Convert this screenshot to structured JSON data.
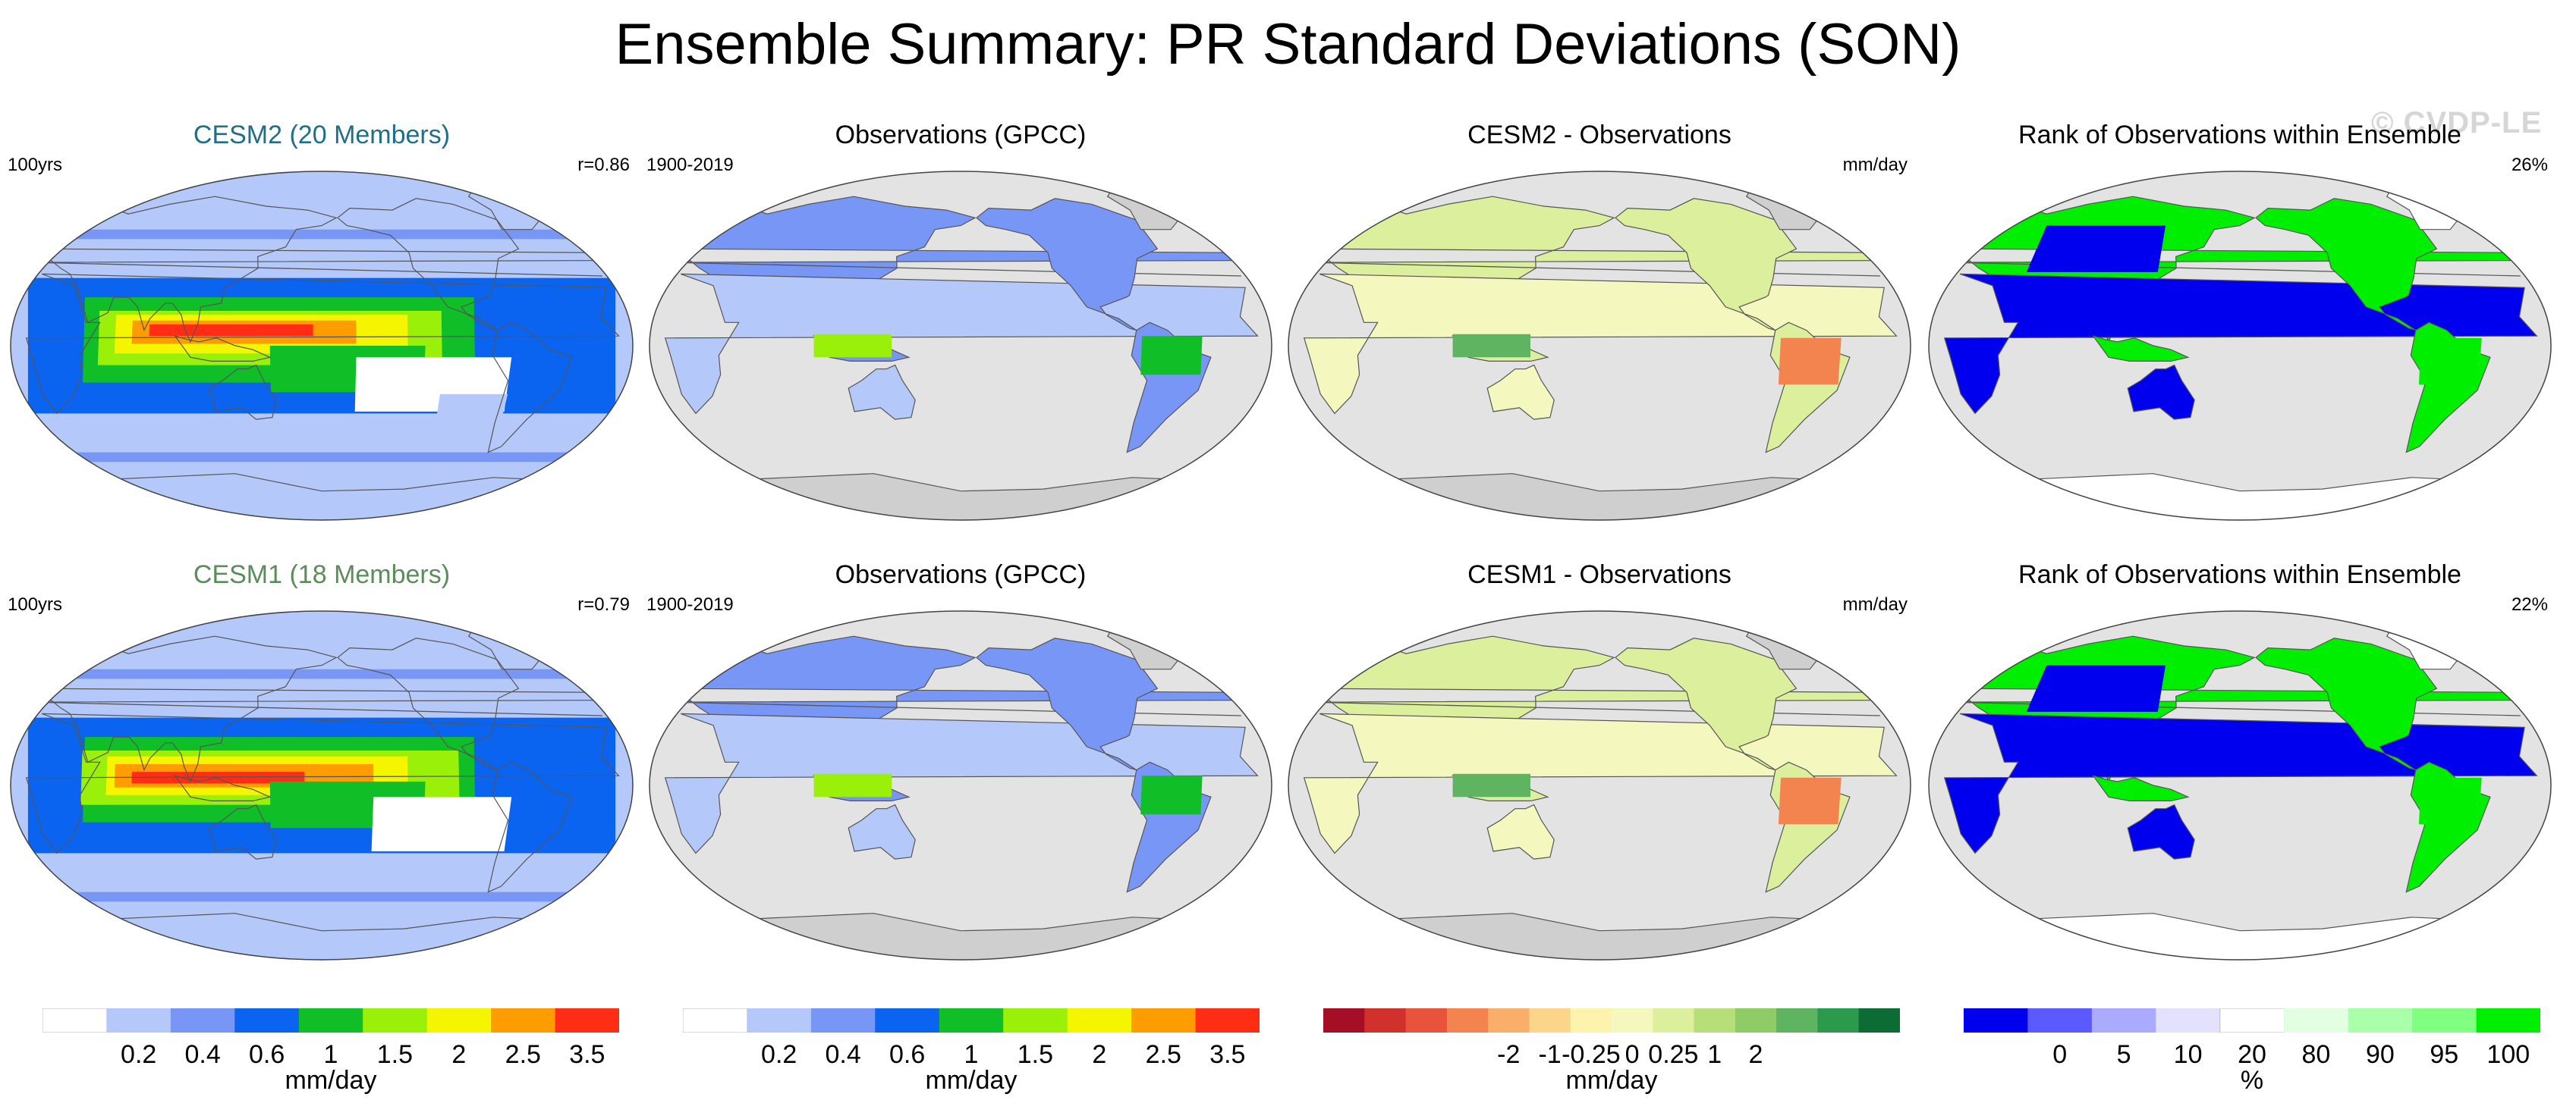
{
  "title": "Ensemble Summary: PR Standard Deviations (SON)",
  "watermark": "© CVDP-LE",
  "colors": {
    "ocean_gray": "#e3e3e3",
    "land_gray": "#cfcfcf",
    "cesm2_title": "#1f6f86",
    "cesm1_title": "#5b8c5a"
  },
  "chart_data": [
    {
      "type": "map",
      "id": "r1c1",
      "title": "CESM2 (20 Members)",
      "title_color": "#1f6f86",
      "left_label": "100yrs",
      "right_label": "r=0.86",
      "field": "model_sd",
      "variant": 1
    },
    {
      "type": "map",
      "id": "r1c2",
      "title": "Observations (GPCC)",
      "title_color": "#000000",
      "left_label": "1900-2019",
      "right_label": "",
      "field": "obs_sd",
      "variant": 1
    },
    {
      "type": "map",
      "id": "r1c3",
      "title": "CESM2 - Observations",
      "title_color": "#000000",
      "left_label": "",
      "right_label": "mm/day",
      "field": "diff",
      "variant": 1
    },
    {
      "type": "map",
      "id": "r1c4",
      "title": "Rank of Observations within Ensemble",
      "title_color": "#000000",
      "left_label": "",
      "right_label": "26%",
      "field": "rank",
      "variant": 1
    },
    {
      "type": "map",
      "id": "r2c1",
      "title": "CESM1 (18 Members)",
      "title_color": "#5b8c5a",
      "left_label": "100yrs",
      "right_label": "r=0.79",
      "field": "model_sd",
      "variant": 2
    },
    {
      "type": "map",
      "id": "r2c2",
      "title": "Observations (GPCC)",
      "title_color": "#000000",
      "left_label": "1900-2019",
      "right_label": "",
      "field": "obs_sd",
      "variant": 2
    },
    {
      "type": "map",
      "id": "r2c3",
      "title": "CESM1 - Observations",
      "title_color": "#000000",
      "left_label": "",
      "right_label": "mm/day",
      "field": "diff",
      "variant": 2
    },
    {
      "type": "map",
      "id": "r2c4",
      "title": "Rank of Observations within Ensemble",
      "title_color": "#000000",
      "left_label": "",
      "right_label": "22%",
      "field": "rank",
      "variant": 2
    }
  ],
  "colorbars": [
    {
      "id": "sd1",
      "units": "mm/day",
      "colors": [
        "#ffffff",
        "#b4c8fa",
        "#7896f5",
        "#0a64f0",
        "#10be28",
        "#9bf00a",
        "#f5f500",
        "#ff9c00",
        "#ff2d14"
      ],
      "tick_labels": [
        "0.2",
        "0.4",
        "0.6",
        "1",
        "1.5",
        "2",
        "2.5",
        "3.5"
      ]
    },
    {
      "id": "sd2",
      "units": "mm/day",
      "colors": [
        "#ffffff",
        "#b4c8fa",
        "#7896f5",
        "#0a64f0",
        "#10be28",
        "#9bf00a",
        "#f5f500",
        "#ff9c00",
        "#ff2d14"
      ],
      "tick_labels": [
        "0.2",
        "0.4",
        "0.6",
        "1",
        "1.5",
        "2",
        "2.5",
        "3.5"
      ]
    },
    {
      "id": "diff",
      "units": "mm/day",
      "colors": [
        "#a50f26",
        "#d0312c",
        "#e8533c",
        "#f3844f",
        "#f9ae69",
        "#fdd58a",
        "#fef3ac",
        "#f4f8bf",
        "#dcef9c",
        "#b6df7a",
        "#8fcc67",
        "#5eb460",
        "#2c9a4c",
        "#0c6c34"
      ],
      "tick_labels": [
        "-2",
        "-1",
        "-0.25",
        "0",
        "0.25",
        "1",
        "2"
      ]
    },
    {
      "id": "rank",
      "units": "%",
      "colors": [
        "#0000ee",
        "#5a5aff",
        "#aaaaff",
        "#e2e2ff",
        "#ffffff",
        "#e2ffe2",
        "#aaffaa",
        "#80ff80",
        "#00ee00"
      ],
      "tick_labels": [
        "0",
        "5",
        "10",
        "20",
        "80",
        "90",
        "95",
        "100"
      ]
    }
  ]
}
